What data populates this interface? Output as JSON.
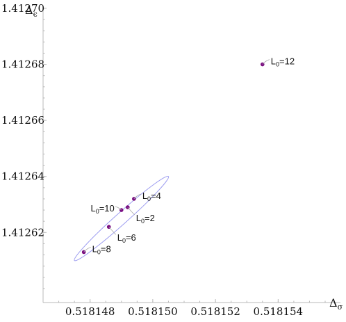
{
  "chart_data": {
    "type": "scatter",
    "title": "",
    "xlabel": {
      "base": "Δ",
      "sub": "σ"
    },
    "ylabel": {
      "base": "Δ",
      "sub": "ϵ"
    },
    "xlim": [
      0.5181465,
      0.5181555
    ],
    "ylim": [
      1.412595,
      1.4127
    ],
    "x_ticks": [
      0.518148,
      0.51815,
      0.518152,
      0.518154
    ],
    "x_tick_labels": [
      "0.518148",
      "0.518150",
      "0.518152",
      "0.518154"
    ],
    "y_ticks": [
      1.41262,
      1.41264,
      1.41266,
      1.41268,
      1.4127
    ],
    "y_tick_labels": [
      "1.41262",
      "1.41264",
      "1.41266",
      "1.41268",
      "1.41270"
    ],
    "points": [
      {
        "base": "L",
        "sub": "0",
        "eq": "=2",
        "x": 0.5181492,
        "y": 1.412629,
        "label_pos": "below-right"
      },
      {
        "base": "L",
        "sub": "0",
        "eq": "=4",
        "x": 0.5181494,
        "y": 1.412632,
        "label_pos": "right"
      },
      {
        "base": "L",
        "sub": "0",
        "eq": "=6",
        "x": 0.5181486,
        "y": 1.412622,
        "label_pos": "below-right"
      },
      {
        "base": "L",
        "sub": "0",
        "eq": "=8",
        "x": 0.5181478,
        "y": 1.412613,
        "label_pos": "right"
      },
      {
        "base": "L",
        "sub": "0",
        "eq": "=10",
        "x": 0.518149,
        "y": 1.412628,
        "label_pos": "left"
      },
      {
        "base": "L",
        "sub": "0",
        "eq": "=12",
        "x": 0.5181535,
        "y": 1.41268,
        "label_pos": "right"
      }
    ],
    "ellipse": {
      "center": [
        0.518149,
        1.412625
      ],
      "semi_axis_major": 1.75,
      "semi_axis_minor": 0.07,
      "note_units": "semi axes expressed in units of the displayed ranges"
    },
    "colors": {
      "point": "#7a0b80",
      "ellipse": "#9c9cf0",
      "axis": "#b9b9b9"
    },
    "grid": false
  }
}
